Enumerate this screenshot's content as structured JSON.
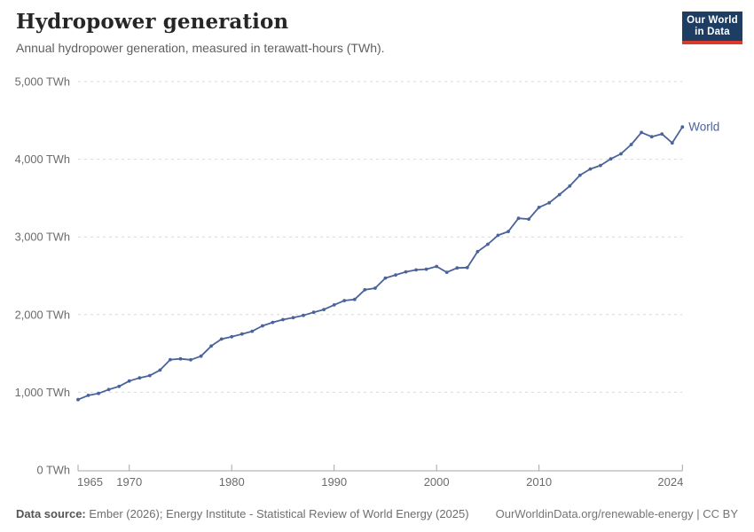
{
  "header": {
    "title": "Hydropower generation",
    "subtitle": "Annual hydropower generation, measured in terawatt-hours (TWh)."
  },
  "logo": {
    "line1": "Our World",
    "line2": "in Data",
    "bg_color": "#1d3d63",
    "accent_color": "#d93a2b"
  },
  "chart_data": {
    "type": "line",
    "title": "Hydropower generation",
    "unit": "TWh",
    "xlabel": "",
    "ylabel": "",
    "ylim": [
      0,
      5000
    ],
    "xlim": [
      1965,
      2024
    ],
    "grid": "horizontal-dashed",
    "legend_position": "end-of-line-label",
    "yticks": [
      0,
      1000,
      2000,
      3000,
      4000,
      5000
    ],
    "ytick_labels": [
      "0 TWh",
      "1,000 TWh",
      "2,000 TWh",
      "3,000 TWh",
      "4,000 TWh",
      "5,000 TWh"
    ],
    "xticks": [
      1965,
      1970,
      1980,
      1990,
      2000,
      2010,
      2024
    ],
    "xtick_labels": [
      "1965",
      "1970",
      "1980",
      "1990",
      "2000",
      "2010",
      "2024"
    ],
    "series": [
      {
        "name": "World",
        "color": "#4a639b",
        "x": [
          1965,
          1966,
          1967,
          1968,
          1969,
          1970,
          1971,
          1972,
          1973,
          1974,
          1975,
          1976,
          1977,
          1978,
          1979,
          1980,
          1981,
          1982,
          1983,
          1984,
          1985,
          1986,
          1987,
          1988,
          1989,
          1990,
          1991,
          1992,
          1993,
          1994,
          1995,
          1996,
          1997,
          1998,
          1999,
          2000,
          2001,
          2002,
          2003,
          2004,
          2005,
          2006,
          2007,
          2008,
          2009,
          2010,
          2011,
          2012,
          2013,
          2014,
          2015,
          2016,
          2017,
          2018,
          2019,
          2020,
          2021,
          2022,
          2023,
          2024
        ],
        "values": [
          905,
          960,
          985,
          1035,
          1075,
          1145,
          1185,
          1215,
          1285,
          1420,
          1430,
          1418,
          1465,
          1595,
          1685,
          1715,
          1750,
          1785,
          1855,
          1900,
          1935,
          1960,
          1990,
          2030,
          2065,
          2125,
          2180,
          2195,
          2320,
          2340,
          2470,
          2510,
          2550,
          2575,
          2585,
          2620,
          2545,
          2600,
          2605,
          2810,
          2905,
          3020,
          3070,
          3240,
          3230,
          3380,
          3440,
          3545,
          3655,
          3795,
          3875,
          3920,
          4005,
          4070,
          4190,
          4345,
          4290,
          4325,
          4210,
          4415
        ]
      }
    ],
    "colors": {
      "grid": "#d9d9d9",
      "axis": "#a5a5a5",
      "tick_label": "#6b6b6b"
    }
  },
  "footer": {
    "source_label": "Data source:",
    "source_text": " Ember (2026); Energy Institute - Statistical Review of World Energy (2025)",
    "link": "OurWorldinData.org/renewable-energy | CC BY"
  }
}
